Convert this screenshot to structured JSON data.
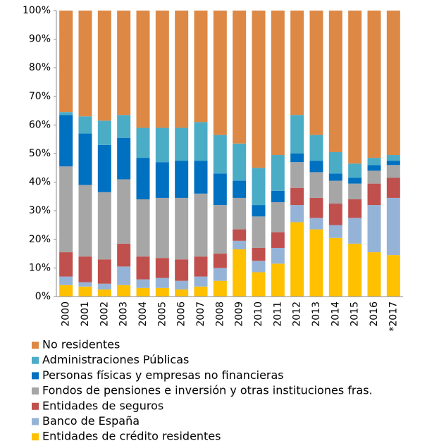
{
  "chart_data": {
    "type": "stacked_bar",
    "categories": [
      "2000",
      "2001",
      "2002",
      "2003",
      "2004",
      "2005",
      "2006",
      "2007",
      "2008",
      "2009",
      "2010",
      "2011",
      "2012",
      "2013",
      "2014",
      "2015",
      "2016",
      "*2017"
    ],
    "series": [
      {
        "name": "Entidades de crédito residentes",
        "color": "#ffc000",
        "values": [
          4,
          3.5,
          2.5,
          4,
          3,
          3,
          2.5,
          3.5,
          5.5,
          16.5,
          8.5,
          11.5,
          26,
          23.5,
          20.5,
          18.5,
          15.5,
          14.5
        ]
      },
      {
        "name": "Banco de España",
        "color": "#95b3d7",
        "values": [
          3,
          1.5,
          2,
          6.5,
          3,
          3.5,
          3,
          3.5,
          4.5,
          3,
          4,
          5.5,
          6,
          4,
          4.5,
          9,
          16.5,
          20
        ]
      },
      {
        "name": "Entidades de seguros",
        "color": "#c0504d",
        "values": [
          8.5,
          9,
          8.5,
          8,
          8,
          7,
          7.5,
          7,
          5,
          4,
          4.5,
          5.5,
          6,
          7,
          7.5,
          6.5,
          7.5,
          7
        ]
      },
      {
        "name": "Fondos de pensiones e inversión y otras instituciones fras.",
        "color": "#a6a6a6",
        "values": [
          30,
          25,
          23.5,
          22.5,
          20,
          21,
          21.5,
          22,
          17,
          11,
          11,
          10.5,
          9,
          9,
          8,
          5.5,
          4.5,
          4.5
        ]
      },
      {
        "name": "Personas físicas y empresas no financieras",
        "color": "#0070c0",
        "values": [
          18,
          18,
          16.5,
          14.5,
          14.5,
          12.5,
          13,
          11.5,
          11,
          6,
          4,
          4,
          3,
          4,
          2.5,
          2,
          2,
          1.5
        ]
      },
      {
        "name": "Administraciones Públicas",
        "color": "#4bacc6",
        "values": [
          1,
          6,
          8.5,
          8,
          10.5,
          12,
          11.5,
          13.5,
          13.5,
          13,
          13,
          12.5,
          13.5,
          9,
          7.5,
          5,
          2.5,
          2
        ]
      },
      {
        "name": "No residentes",
        "color": "#dd8844",
        "values": [
          35.5,
          37,
          38.5,
          36.5,
          41,
          41,
          41,
          39,
          43.5,
          46.5,
          55,
          50.5,
          36.5,
          43.5,
          49.5,
          53.5,
          51.5,
          50.5
        ]
      }
    ],
    "ylim": [
      0,
      100
    ],
    "yticks": [
      {
        "value": 0,
        "label": "0%"
      },
      {
        "value": 10,
        "label": "10%"
      },
      {
        "value": 20,
        "label": "20%"
      },
      {
        "value": 30,
        "label": "30%"
      },
      {
        "value": 40,
        "label": "40%"
      },
      {
        "value": 50,
        "label": "50%"
      },
      {
        "value": 60,
        "label": "60%"
      },
      {
        "value": 70,
        "label": "70%"
      },
      {
        "value": 80,
        "label": "80%"
      },
      {
        "value": 90,
        "label": "90%"
      },
      {
        "value": 100,
        "label": "100%"
      }
    ]
  }
}
